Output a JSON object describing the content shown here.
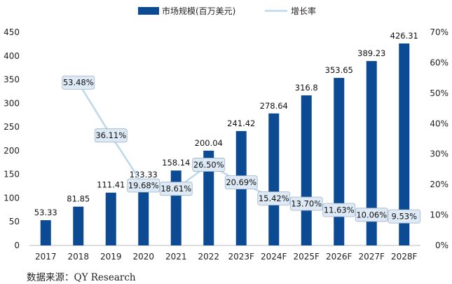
{
  "chart_data": {
    "type": "bar+line",
    "categories": [
      "2017",
      "2018",
      "2019",
      "2020",
      "2021",
      "2022",
      "2023F",
      "2024F",
      "2025F",
      "2026F",
      "2027F",
      "2028F"
    ],
    "series": [
      {
        "name": "市场规模(百万美元)",
        "kind": "bar",
        "axis": "left",
        "values": [
          53.33,
          81.85,
          111.41,
          133.33,
          158.14,
          200.04,
          241.42,
          278.64,
          316.8,
          353.65,
          389.23,
          426.31
        ],
        "labels": [
          "53.33",
          "81.85",
          "111.41",
          "133.33",
          "158.14",
          "200.04",
          "241.42",
          "278.64",
          "316.8",
          "353.65",
          "389.23",
          "426.31"
        ]
      },
      {
        "name": "增长率",
        "kind": "line",
        "axis": "right",
        "values": [
          null,
          53.48,
          36.11,
          19.68,
          18.61,
          26.5,
          20.69,
          15.42,
          13.7,
          11.63,
          10.06,
          9.53
        ],
        "labels": [
          "",
          "53.48%",
          "36.11%",
          "19.68%",
          "18.61%",
          "26.50%",
          "20.69%",
          "15.42%",
          "13.70%",
          "11.63%",
          "10.06%",
          "9.53%"
        ]
      }
    ],
    "ylim_left": [
      0,
      450
    ],
    "yticks_left": [
      "0",
      "50",
      "100",
      "150",
      "200",
      "250",
      "300",
      "350",
      "400",
      "450"
    ],
    "ylim_right": [
      0,
      70
    ],
    "yticks_right": [
      "0%",
      "10%",
      "20%",
      "30%",
      "40%",
      "50%",
      "60%",
      "70%"
    ],
    "legend_position": "top",
    "grid": false,
    "colors": {
      "bar": "#0d4a94",
      "line": "#bcd8ee",
      "label_box": "#dde9f5",
      "label_border": "#9fb3c8"
    }
  },
  "source": "数据来源：QY Research"
}
